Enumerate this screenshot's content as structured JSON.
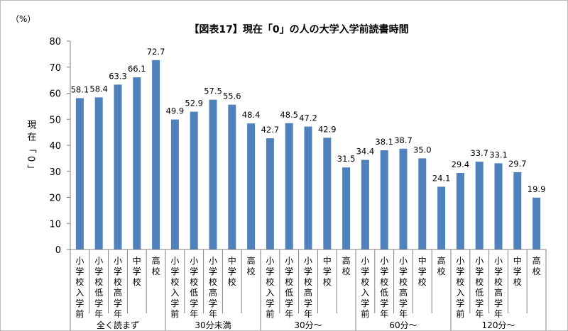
{
  "chart_data": {
    "type": "bar",
    "title": "【図表17】現在「0」の人の大学入学前読書時間",
    "unit_label": "（%）",
    "ylabel": "現在「0」",
    "ylim": [
      0,
      80
    ],
    "yticks": [
      0,
      10,
      20,
      30,
      40,
      50,
      60,
      70,
      80
    ],
    "grid": false,
    "legend": "none",
    "bar_color": "#4f81bd",
    "groups": [
      {
        "name": "全く読まず",
        "categories": [
          "小学校入学前",
          "小学校低学年",
          "小学校高学年",
          "中学校",
          "高校"
        ],
        "values": [
          58.1,
          58.4,
          63.3,
          66.1,
          72.7
        ]
      },
      {
        "name": "30分未満",
        "categories": [
          "小学校入学前",
          "小学校低学年",
          "小学校高学年",
          "中学校",
          "高校"
        ],
        "values": [
          49.9,
          52.9,
          57.5,
          55.6,
          48.4
        ]
      },
      {
        "name": "30分～",
        "categories": [
          "小学校入学前",
          "小学校低学年",
          "小学校高学年",
          "中学校",
          "高校"
        ],
        "values": [
          42.7,
          48.5,
          47.2,
          42.9,
          31.5
        ]
      },
      {
        "name": "60分～",
        "categories": [
          "小学校入学前",
          "小学校低学年",
          "小学校高学年",
          "中学校",
          "高校"
        ],
        "values": [
          34.4,
          38.1,
          38.7,
          35.0,
          24.1
        ]
      },
      {
        "name": "120分～",
        "categories": [
          "小学校入学前",
          "小学校低学年",
          "小学校高学年",
          "中学校",
          "高校"
        ],
        "values": [
          29.4,
          33.7,
          33.1,
          29.7,
          19.9
        ]
      }
    ]
  }
}
